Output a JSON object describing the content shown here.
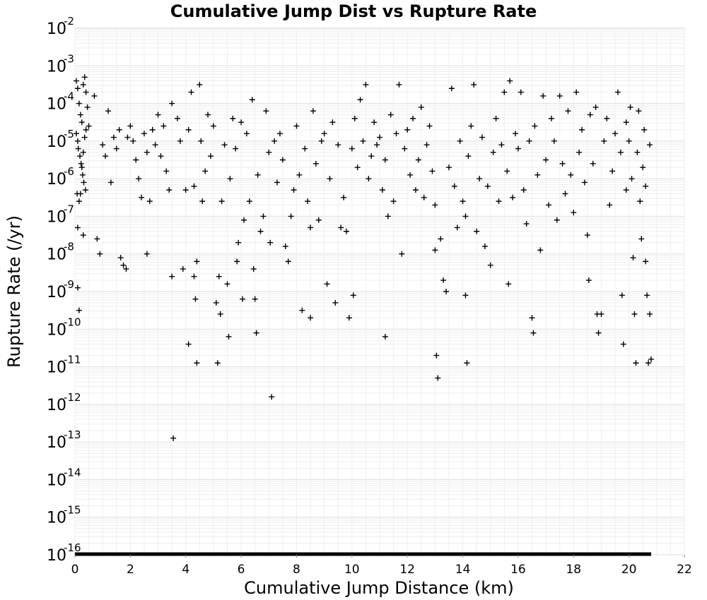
{
  "chart_data": {
    "type": "scatter",
    "title": "Cumulative Jump Dist vs Rupture Rate",
    "xlabel": "Cumulative Jump Distance (km)",
    "ylabel": "Rupture Rate (/yr)",
    "xlim": [
      0,
      22
    ],
    "ylim_log10": [
      -16,
      -2
    ],
    "y_scale": "log",
    "grid": true,
    "marker": "+",
    "marker_color": "#000000",
    "x_ticks": [
      "0",
      "2",
      "4",
      "6",
      "8",
      "10",
      "12",
      "14",
      "16",
      "18",
      "20",
      "22"
    ],
    "y_ticks": [
      {
        "base": "10",
        "exp": "-2"
      },
      {
        "base": "10",
        "exp": "-3"
      },
      {
        "base": "10",
        "exp": "-4"
      },
      {
        "base": "10",
        "exp": "-5"
      },
      {
        "base": "10",
        "exp": "-6"
      },
      {
        "base": "10",
        "exp": "-7"
      },
      {
        "base": "10",
        "exp": "-8"
      },
      {
        "base": "10",
        "exp": "-9"
      },
      {
        "base": "10",
        "exp": "-10"
      },
      {
        "base": "10",
        "exp": "-11"
      },
      {
        "base": "10",
        "exp": "-12"
      },
      {
        "base": "10",
        "exp": "-13"
      },
      {
        "base": "10",
        "exp": "-14"
      },
      {
        "base": "10",
        "exp": "-15"
      },
      {
        "base": "10",
        "exp": "-16"
      }
    ],
    "series": [
      {
        "points": [
          [
            0.05,
            -3.4
          ],
          [
            0.1,
            -3.6
          ],
          [
            0.15,
            -4.0
          ],
          [
            0.2,
            -4.3
          ],
          [
            0.25,
            -4.5
          ],
          [
            0.3,
            -3.5
          ],
          [
            0.35,
            -3.3
          ],
          [
            0.4,
            -3.7
          ],
          [
            0.45,
            -4.1
          ],
          [
            0.5,
            -4.6
          ],
          [
            0.05,
            -4.8
          ],
          [
            0.1,
            -5.0
          ],
          [
            0.12,
            -5.2
          ],
          [
            0.18,
            -5.4
          ],
          [
            0.22,
            -5.6
          ],
          [
            0.28,
            -5.9
          ],
          [
            0.32,
            -6.1
          ],
          [
            0.38,
            -6.3
          ],
          [
            0.08,
            -6.4
          ],
          [
            0.15,
            -6.6
          ],
          [
            0.2,
            -6.4
          ],
          [
            0.25,
            -5.7
          ],
          [
            0.3,
            -5.3
          ],
          [
            0.35,
            -4.9
          ],
          [
            0.4,
            -4.7
          ],
          [
            0.1,
            -7.3
          ],
          [
            0.3,
            -7.5
          ],
          [
            0.1,
            -8.9
          ],
          [
            0.15,
            -9.5
          ],
          [
            0.7,
            -3.8
          ],
          [
            0.8,
            -7.6
          ],
          [
            0.9,
            -8.0
          ],
          [
            1.0,
            -5.1
          ],
          [
            1.1,
            -5.4
          ],
          [
            1.2,
            -4.2
          ],
          [
            1.3,
            -6.1
          ],
          [
            1.4,
            -4.9
          ],
          [
            1.5,
            -5.2
          ],
          [
            1.6,
            -4.7
          ],
          [
            1.65,
            -8.1
          ],
          [
            1.75,
            -8.3
          ],
          [
            1.85,
            -8.4
          ],
          [
            1.9,
            -4.9
          ],
          [
            2.0,
            -4.6
          ],
          [
            2.1,
            -5.0
          ],
          [
            2.2,
            -5.5
          ],
          [
            2.3,
            -6.0
          ],
          [
            2.4,
            -6.5
          ],
          [
            2.5,
            -4.8
          ],
          [
            2.6,
            -5.3
          ],
          [
            2.6,
            -8.0
          ],
          [
            2.7,
            -6.6
          ],
          [
            2.8,
            -4.7
          ],
          [
            2.9,
            -5.1
          ],
          [
            3.0,
            -4.3
          ],
          [
            3.1,
            -5.4
          ],
          [
            3.2,
            -4.6
          ],
          [
            3.3,
            -5.8
          ],
          [
            3.4,
            -6.3
          ],
          [
            3.5,
            -4.0
          ],
          [
            3.5,
            -8.6
          ],
          [
            3.55,
            -12.9
          ],
          [
            3.7,
            -4.4
          ],
          [
            3.8,
            -5.0
          ],
          [
            3.9,
            -8.4
          ],
          [
            4.0,
            -6.3
          ],
          [
            4.1,
            -4.7
          ],
          [
            4.1,
            -10.4
          ],
          [
            4.2,
            -3.7
          ],
          [
            4.3,
            -6.2
          ],
          [
            4.3,
            -8.6
          ],
          [
            4.35,
            -9.2
          ],
          [
            4.4,
            -8.2
          ],
          [
            4.4,
            -10.9
          ],
          [
            4.5,
            -3.5
          ],
          [
            4.55,
            -5.0
          ],
          [
            4.6,
            -6.6
          ],
          [
            4.7,
            -5.8
          ],
          [
            4.8,
            -4.3
          ],
          [
            4.9,
            -5.4
          ],
          [
            5.0,
            -4.6
          ],
          [
            5.1,
            -9.3
          ],
          [
            5.15,
            -10.9
          ],
          [
            5.2,
            -8.6
          ],
          [
            5.25,
            -9.6
          ],
          [
            5.3,
            -6.6
          ],
          [
            5.4,
            -5.1
          ],
          [
            5.5,
            -8.8
          ],
          [
            5.55,
            -10.2
          ],
          [
            5.6,
            -6.0
          ],
          [
            5.7,
            -4.4
          ],
          [
            5.8,
            -5.2
          ],
          [
            5.85,
            -8.2
          ],
          [
            5.9,
            -7.7
          ],
          [
            6.0,
            -4.5
          ],
          [
            6.05,
            -9.2
          ],
          [
            6.1,
            -7.1
          ],
          [
            6.2,
            -4.8
          ],
          [
            6.3,
            -6.6
          ],
          [
            6.4,
            -3.9
          ],
          [
            6.45,
            -8.4
          ],
          [
            6.5,
            -9.2
          ],
          [
            6.55,
            -10.1
          ],
          [
            6.6,
            -5.9
          ],
          [
            6.7,
            -7.4
          ],
          [
            6.8,
            -7.0
          ],
          [
            6.9,
            -4.2
          ],
          [
            7.0,
            -5.3
          ],
          [
            7.05,
            -7.7
          ],
          [
            7.1,
            -11.8
          ],
          [
            7.2,
            -5.0
          ],
          [
            7.3,
            -6.1
          ],
          [
            7.4,
            -4.8
          ],
          [
            7.5,
            -5.5
          ],
          [
            7.6,
            -7.8
          ],
          [
            7.7,
            -8.2
          ],
          [
            7.8,
            -7.0
          ],
          [
            7.9,
            -6.3
          ],
          [
            8.0,
            -4.6
          ],
          [
            8.1,
            -5.9
          ],
          [
            8.2,
            -9.5
          ],
          [
            8.3,
            -5.2
          ],
          [
            8.4,
            -6.6
          ],
          [
            8.5,
            -7.3
          ],
          [
            8.5,
            -9.7
          ],
          [
            8.6,
            -4.2
          ],
          [
            8.7,
            -5.6
          ],
          [
            8.8,
            -7.1
          ],
          [
            8.9,
            -5.0
          ],
          [
            9.0,
            -4.8
          ],
          [
            9.1,
            -8.8
          ],
          [
            9.2,
            -6.0
          ],
          [
            9.3,
            -4.5
          ],
          [
            9.4,
            -9.3
          ],
          [
            9.5,
            -5.1
          ],
          [
            9.6,
            -7.3
          ],
          [
            9.7,
            -6.5
          ],
          [
            9.8,
            -7.4
          ],
          [
            9.9,
            -9.7
          ],
          [
            10.0,
            -5.2
          ],
          [
            10.05,
            -9.1
          ],
          [
            10.1,
            -4.4
          ],
          [
            10.2,
            -5.7
          ],
          [
            10.3,
            -3.9
          ],
          [
            10.4,
            -5.0
          ],
          [
            10.5,
            -3.5
          ],
          [
            10.6,
            -6.0
          ],
          [
            10.7,
            -5.4
          ],
          [
            10.8,
            -4.5
          ],
          [
            10.9,
            -5.1
          ],
          [
            11.0,
            -4.9
          ],
          [
            11.1,
            -6.3
          ],
          [
            11.2,
            -5.5
          ],
          [
            11.2,
            -10.2
          ],
          [
            11.3,
            -7.0
          ],
          [
            11.4,
            -4.3
          ],
          [
            11.5,
            -6.6
          ],
          [
            11.6,
            -4.8
          ],
          [
            11.7,
            -3.5
          ],
          [
            11.8,
            -8.0
          ],
          [
            11.9,
            -5.2
          ],
          [
            12.0,
            -4.7
          ],
          [
            12.1,
            -5.9
          ],
          [
            12.2,
            -4.4
          ],
          [
            12.3,
            -6.3
          ],
          [
            12.4,
            -5.5
          ],
          [
            12.5,
            -4.1
          ],
          [
            12.6,
            -6.5
          ],
          [
            12.7,
            -5.1
          ],
          [
            12.8,
            -4.6
          ],
          [
            12.9,
            -5.8
          ],
          [
            13.0,
            -6.7
          ],
          [
            13.0,
            -7.9
          ],
          [
            13.05,
            -10.7
          ],
          [
            13.1,
            -11.3
          ],
          [
            13.2,
            -7.6
          ],
          [
            13.3,
            -8.7
          ],
          [
            13.4,
            -9.0
          ],
          [
            13.5,
            -5.7
          ],
          [
            13.6,
            -3.6
          ],
          [
            13.7,
            -6.2
          ],
          [
            13.8,
            -7.3
          ],
          [
            13.9,
            -5.0
          ],
          [
            14.0,
            -6.6
          ],
          [
            14.1,
            -7.0
          ],
          [
            14.1,
            -9.1
          ],
          [
            14.15,
            -10.9
          ],
          [
            14.2,
            -5.4
          ],
          [
            14.3,
            -4.6
          ],
          [
            14.4,
            -3.5
          ],
          [
            14.5,
            -7.4
          ],
          [
            14.6,
            -6.0
          ],
          [
            14.7,
            -4.9
          ],
          [
            14.8,
            -7.8
          ],
          [
            14.9,
            -6.2
          ],
          [
            15.0,
            -8.3
          ],
          [
            15.1,
            -5.3
          ],
          [
            15.2,
            -4.4
          ],
          [
            15.3,
            -6.6
          ],
          [
            15.4,
            -5.1
          ],
          [
            15.5,
            -3.7
          ],
          [
            15.6,
            -5.8
          ],
          [
            15.65,
            -8.8
          ],
          [
            15.7,
            -3.4
          ],
          [
            15.8,
            -6.5
          ],
          [
            15.9,
            -4.8
          ],
          [
            16.0,
            -5.2
          ],
          [
            16.1,
            -3.7
          ],
          [
            16.2,
            -6.3
          ],
          [
            16.3,
            -7.2
          ],
          [
            16.4,
            -5.0
          ],
          [
            16.5,
            -9.7
          ],
          [
            16.55,
            -10.1
          ],
          [
            16.6,
            -4.6
          ],
          [
            16.7,
            -5.9
          ],
          [
            16.8,
            -7.9
          ],
          [
            16.9,
            -3.8
          ],
          [
            17.0,
            -5.5
          ],
          [
            17.1,
            -6.7
          ],
          [
            17.2,
            -4.4
          ],
          [
            17.3,
            -5.0
          ],
          [
            17.4,
            -7.1
          ],
          [
            17.5,
            -3.8
          ],
          [
            17.6,
            -5.6
          ],
          [
            17.7,
            -6.4
          ],
          [
            17.8,
            -4.2
          ],
          [
            17.9,
            -5.9
          ],
          [
            18.0,
            -6.9
          ],
          [
            18.1,
            -3.7
          ],
          [
            18.2,
            -5.3
          ],
          [
            18.3,
            -4.7
          ],
          [
            18.4,
            -6.1
          ],
          [
            18.5,
            -7.5
          ],
          [
            18.55,
            -8.7
          ],
          [
            18.6,
            -4.3
          ],
          [
            18.7,
            -5.6
          ],
          [
            18.8,
            -4.1
          ],
          [
            18.85,
            -9.6
          ],
          [
            18.9,
            -10.1
          ],
          [
            19.0,
            -9.6
          ],
          [
            19.1,
            -5.0
          ],
          [
            19.2,
            -4.4
          ],
          [
            19.3,
            -6.7
          ],
          [
            19.4,
            -5.8
          ],
          [
            19.5,
            -4.8
          ],
          [
            19.6,
            -3.7
          ],
          [
            19.7,
            -5.3
          ],
          [
            19.75,
            -9.1
          ],
          [
            19.8,
            -10.4
          ],
          [
            19.9,
            -4.5
          ],
          [
            19.9,
            -6.3
          ],
          [
            20.0,
            -5.0
          ],
          [
            20.05,
            -4.1
          ],
          [
            20.1,
            -6.0
          ],
          [
            20.15,
            -8.1
          ],
          [
            20.2,
            -9.6
          ],
          [
            20.25,
            -10.9
          ],
          [
            20.3,
            -5.3
          ],
          [
            20.35,
            -4.2
          ],
          [
            20.4,
            -6.6
          ],
          [
            20.45,
            -7.6
          ],
          [
            20.5,
            -5.7
          ],
          [
            20.55,
            -4.7
          ],
          [
            20.6,
            -6.2
          ],
          [
            20.6,
            -8.2
          ],
          [
            20.65,
            -9.1
          ],
          [
            20.7,
            -10.9
          ],
          [
            20.75,
            -9.6
          ],
          [
            20.75,
            -5.1
          ],
          [
            20.8,
            -10.8
          ]
        ]
      }
    ]
  }
}
